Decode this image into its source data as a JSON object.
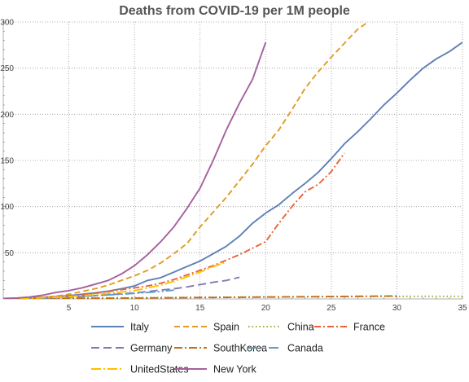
{
  "chart_data": {
    "type": "line",
    "title": "Deaths from COVID-19 per 1M people",
    "xlabel": "",
    "ylabel": "",
    "xlim": [
      0,
      35
    ],
    "ylim": [
      0,
      300
    ],
    "xticks": [
      5,
      10,
      15,
      20,
      25,
      30,
      35
    ],
    "yticks": [
      50,
      100,
      150,
      200,
      250,
      300
    ],
    "grid": true,
    "legend_position": "bottom",
    "series": [
      {
        "name": "Italy",
        "color": "#5e81b5",
        "dash": "solid",
        "x": [
          0,
          1,
          2,
          3,
          4,
          5,
          6,
          7,
          8,
          9,
          10,
          11,
          12,
          13,
          14,
          15,
          16,
          17,
          18,
          19,
          20,
          21,
          22,
          23,
          24,
          25,
          26,
          27,
          28,
          29,
          30,
          31,
          32,
          33,
          34,
          35
        ],
        "y": [
          0.5,
          0.8,
          1.2,
          1.8,
          2.5,
          3.5,
          5,
          6.5,
          8.5,
          11,
          14,
          20,
          23,
          29,
          35,
          41,
          49,
          57,
          68,
          82,
          93,
          102,
          114,
          125,
          137,
          152,
          168,
          181,
          195,
          210,
          223,
          237,
          250,
          260,
          268,
          278
        ]
      },
      {
        "name": "Spain",
        "color": "#e19c24",
        "dash": "7,4",
        "x": [
          0,
          1,
          2,
          3,
          4,
          5,
          6,
          7,
          8,
          9,
          10,
          11,
          12,
          13,
          14,
          15,
          16,
          17,
          18,
          19,
          20,
          21,
          22,
          23,
          24,
          25,
          26,
          27,
          28
        ],
        "y": [
          0.3,
          0.6,
          1,
          1.8,
          3,
          5,
          8,
          11,
          15,
          20,
          25,
          31,
          39,
          49,
          60,
          78,
          94,
          110,
          128,
          146,
          166,
          183,
          205,
          228,
          246,
          262,
          277,
          292,
          302
        ]
      },
      {
        "name": "China",
        "color": "#8fb032",
        "dash": "1.5,3",
        "x": [
          0,
          5,
          10,
          15,
          20,
          25,
          30,
          35
        ],
        "y": [
          0.2,
          0.8,
          1.2,
          1.8,
          2.2,
          2.5,
          2.7,
          2.8
        ]
      },
      {
        "name": "France",
        "color": "#eb6235",
        "dash": "8,3,2,3",
        "x": [
          0,
          1,
          2,
          3,
          4,
          5,
          6,
          7,
          8,
          9,
          10,
          11,
          12,
          13,
          14,
          15,
          16,
          17,
          18,
          19,
          20,
          21,
          22,
          23,
          24,
          25,
          26
        ],
        "y": [
          0.2,
          0.5,
          1,
          1.5,
          2,
          3,
          4,
          6,
          8,
          10,
          12,
          14,
          17,
          21,
          26,
          31,
          36,
          42,
          48,
          55,
          62,
          82,
          100,
          116,
          124,
          138,
          158
        ]
      },
      {
        "name": "Germany",
        "color": "#8778b3",
        "dash": "10,5",
        "x": [
          0,
          1,
          2,
          3,
          4,
          5,
          6,
          7,
          8,
          9,
          10,
          11,
          12,
          13,
          14,
          15,
          16,
          17,
          18
        ],
        "y": [
          0.1,
          0.3,
          0.5,
          0.8,
          1.2,
          1.8,
          2.5,
          3.5,
          4.5,
          5.5,
          6.5,
          8,
          9.5,
          11,
          13,
          15.5,
          18,
          20,
          23.5
        ]
      },
      {
        "name": "SouthKorea",
        "color": "#c56e1a",
        "dash": "10,3,2,3",
        "x": [
          0,
          5,
          10,
          15,
          20,
          25,
          30
        ],
        "y": [
          0.2,
          0.6,
          1,
          1.5,
          2,
          2.6,
          3.2
        ]
      },
      {
        "name": "Canada",
        "color": "#5d9ec7",
        "dash": "12,3,2,3,2,3",
        "x": [
          0,
          1,
          2,
          3,
          4,
          5,
          6,
          7,
          8,
          9,
          10,
          11,
          12,
          13
        ],
        "y": [
          0.1,
          0.3,
          0.6,
          1,
          1.5,
          2,
          2.8,
          3.5,
          4.3,
          5,
          6,
          7,
          8,
          9.5
        ]
      },
      {
        "name": "UnitedStates",
        "color": "#ffbf00",
        "dash": "12,3,2,3",
        "x": [
          0,
          1,
          2,
          3,
          4,
          5,
          6,
          7,
          8,
          9,
          10,
          11,
          12,
          13,
          14,
          15,
          16,
          17
        ],
        "y": [
          0.1,
          0.3,
          0.7,
          1.2,
          1.8,
          2.5,
          3.5,
          4.5,
          6,
          7.5,
          9,
          12,
          15,
          19,
          24,
          29,
          35,
          40
        ]
      },
      {
        "name": "New York",
        "color": "#a5609d",
        "dash": "solid",
        "x": [
          0,
          1,
          2,
          3,
          4,
          5,
          6,
          7,
          8,
          9,
          10,
          11,
          12,
          13,
          14,
          15,
          16,
          17,
          18,
          19,
          20
        ],
        "y": [
          0.5,
          1,
          2,
          4,
          7,
          9,
          12,
          16,
          20,
          27,
          36,
          48,
          62,
          78,
          98,
          120,
          150,
          183,
          212,
          238,
          278
        ]
      }
    ]
  }
}
